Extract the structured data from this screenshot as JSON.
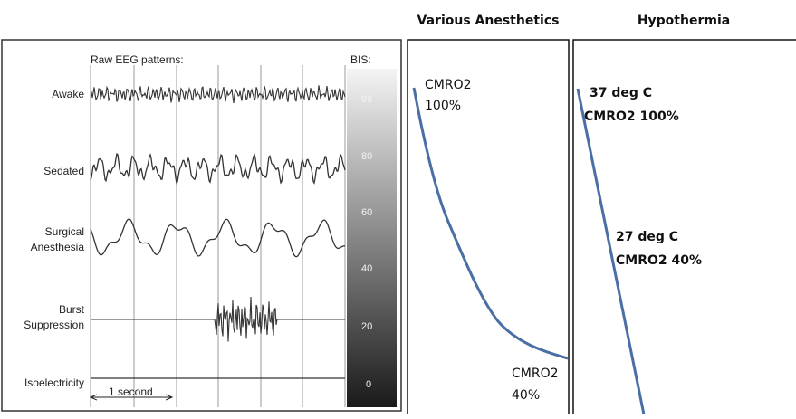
{
  "eeg_panel": {
    "header": "Raw EEG patterns:",
    "bis_header": "BIS:",
    "rows": [
      {
        "label_lines": [
          "Awake"
        ],
        "bis": "98"
      },
      {
        "label_lines": [
          "Sedated"
        ],
        "bis": "80"
      },
      {
        "label_lines": [
          "Surgical",
          "Anesthesia"
        ],
        "bis": "60"
      },
      {
        "label_lines": [
          "",
          ""
        ],
        "bis": "40"
      },
      {
        "label_lines": [
          "Burst",
          "Suppression"
        ],
        "bis": "20"
      },
      {
        "label_lines": [
          "Isoelectricity"
        ],
        "bis": "0"
      }
    ],
    "scale_label": "1 second",
    "colors": {
      "trace": "#333333",
      "gridline": "#9a9a9a",
      "bar_top": "#f4f4f4",
      "bar_bottom": "#1a1a1a"
    }
  },
  "anesthetics_panel": {
    "title": "Various Anesthetics",
    "start_annotation": [
      "CMRO2",
      "100%"
    ],
    "end_annotation": [
      "CMRO2",
      "40%"
    ],
    "curve_color": "#4a6fa5"
  },
  "hypothermia_panel": {
    "title": "Hypothermia",
    "start_annotation": [
      "37 deg C",
      "CMRO2 100%"
    ],
    "mid_annotation": [
      "27 deg C",
      "CMRO2 40%"
    ],
    "line_color": "#4a6fa5"
  }
}
